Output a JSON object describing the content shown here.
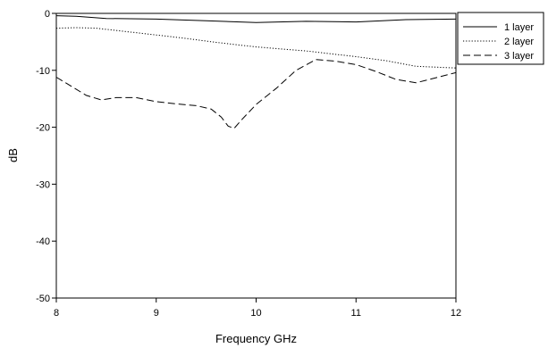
{
  "chart_data": {
    "type": "line",
    "title": "",
    "xlabel": "Frequency GHz",
    "ylabel": "dB",
    "xlim": [
      8,
      12
    ],
    "ylim": [
      -50,
      0
    ],
    "x_ticks": [
      8,
      9,
      10,
      11,
      12
    ],
    "y_ticks": [
      0,
      -10,
      -20,
      -30,
      -40,
      -50
    ],
    "grid": false,
    "legend_position": "outside-top-right",
    "series": [
      {
        "name": "1 layer",
        "line_style": "solid",
        "color": "#000000",
        "x": [
          8.0,
          8.2,
          8.5,
          9.0,
          9.5,
          10.0,
          10.5,
          11.0,
          11.5,
          12.0
        ],
        "y": [
          -0.4,
          -0.5,
          -0.9,
          -1.0,
          -1.3,
          -1.6,
          -1.4,
          -1.5,
          -1.1,
          -1.0
        ]
      },
      {
        "name": "2 layer",
        "line_style": "dotted",
        "color": "#000000",
        "x": [
          8.0,
          8.2,
          8.4,
          8.7,
          9.0,
          9.3,
          9.6,
          10.0,
          10.5,
          11.0,
          11.3,
          11.6,
          12.0
        ],
        "y": [
          -2.6,
          -2.5,
          -2.6,
          -3.2,
          -3.8,
          -4.4,
          -5.1,
          -5.9,
          -6.6,
          -7.6,
          -8.3,
          -9.3,
          -9.6
        ]
      },
      {
        "name": "3 layer",
        "line_style": "dashed",
        "color": "#000000",
        "x": [
          8.0,
          8.15,
          8.3,
          8.45,
          8.6,
          8.8,
          9.0,
          9.2,
          9.4,
          9.55,
          9.65,
          9.72,
          9.78,
          9.85,
          10.0,
          10.2,
          10.4,
          10.6,
          10.8,
          11.0,
          11.2,
          11.4,
          11.6,
          11.8,
          12.0
        ],
        "y": [
          -11.2,
          -12.8,
          -14.4,
          -15.2,
          -14.8,
          -14.8,
          -15.5,
          -15.9,
          -16.2,
          -16.8,
          -18.2,
          -19.8,
          -20.2,
          -18.8,
          -16.0,
          -13.2,
          -10.0,
          -8.1,
          -8.4,
          -9.0,
          -10.2,
          -11.6,
          -12.2,
          -11.3,
          -10.4
        ]
      }
    ]
  }
}
